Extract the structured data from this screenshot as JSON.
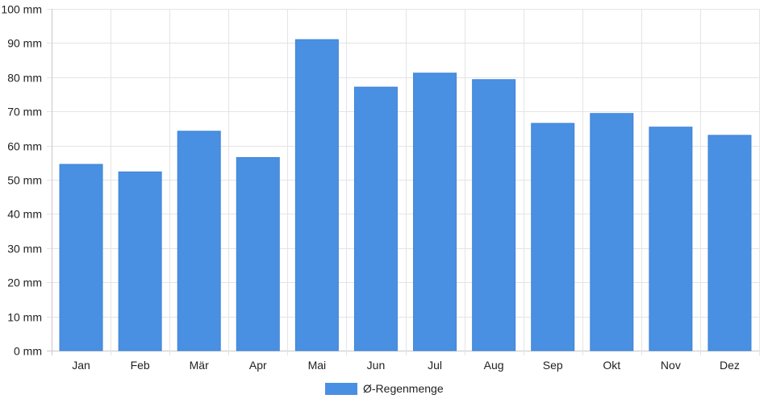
{
  "chart_data": {
    "type": "bar",
    "categories": [
      "Jan",
      "Feb",
      "Mär",
      "Apr",
      "Mai",
      "Jun",
      "Jul",
      "Aug",
      "Sep",
      "Okt",
      "Nov",
      "Dez"
    ],
    "series": [
      {
        "name": "Ø-Regenmenge",
        "values": [
          54.5,
          52.3,
          64.2,
          56.5,
          91.0,
          77.1,
          81.2,
          79.3,
          66.5,
          69.4,
          65.4,
          63.0
        ]
      }
    ],
    "title": "",
    "xlabel": "",
    "ylabel": "",
    "ylim": [
      0,
      100
    ],
    "ytick_step": 10,
    "y_unit_suffix": " mm",
    "grid": true,
    "legend_position": "bottom",
    "colors": {
      "bar": "#4a90e2",
      "grid": "#e4e4e4",
      "axis": "#c8c8c8"
    }
  }
}
